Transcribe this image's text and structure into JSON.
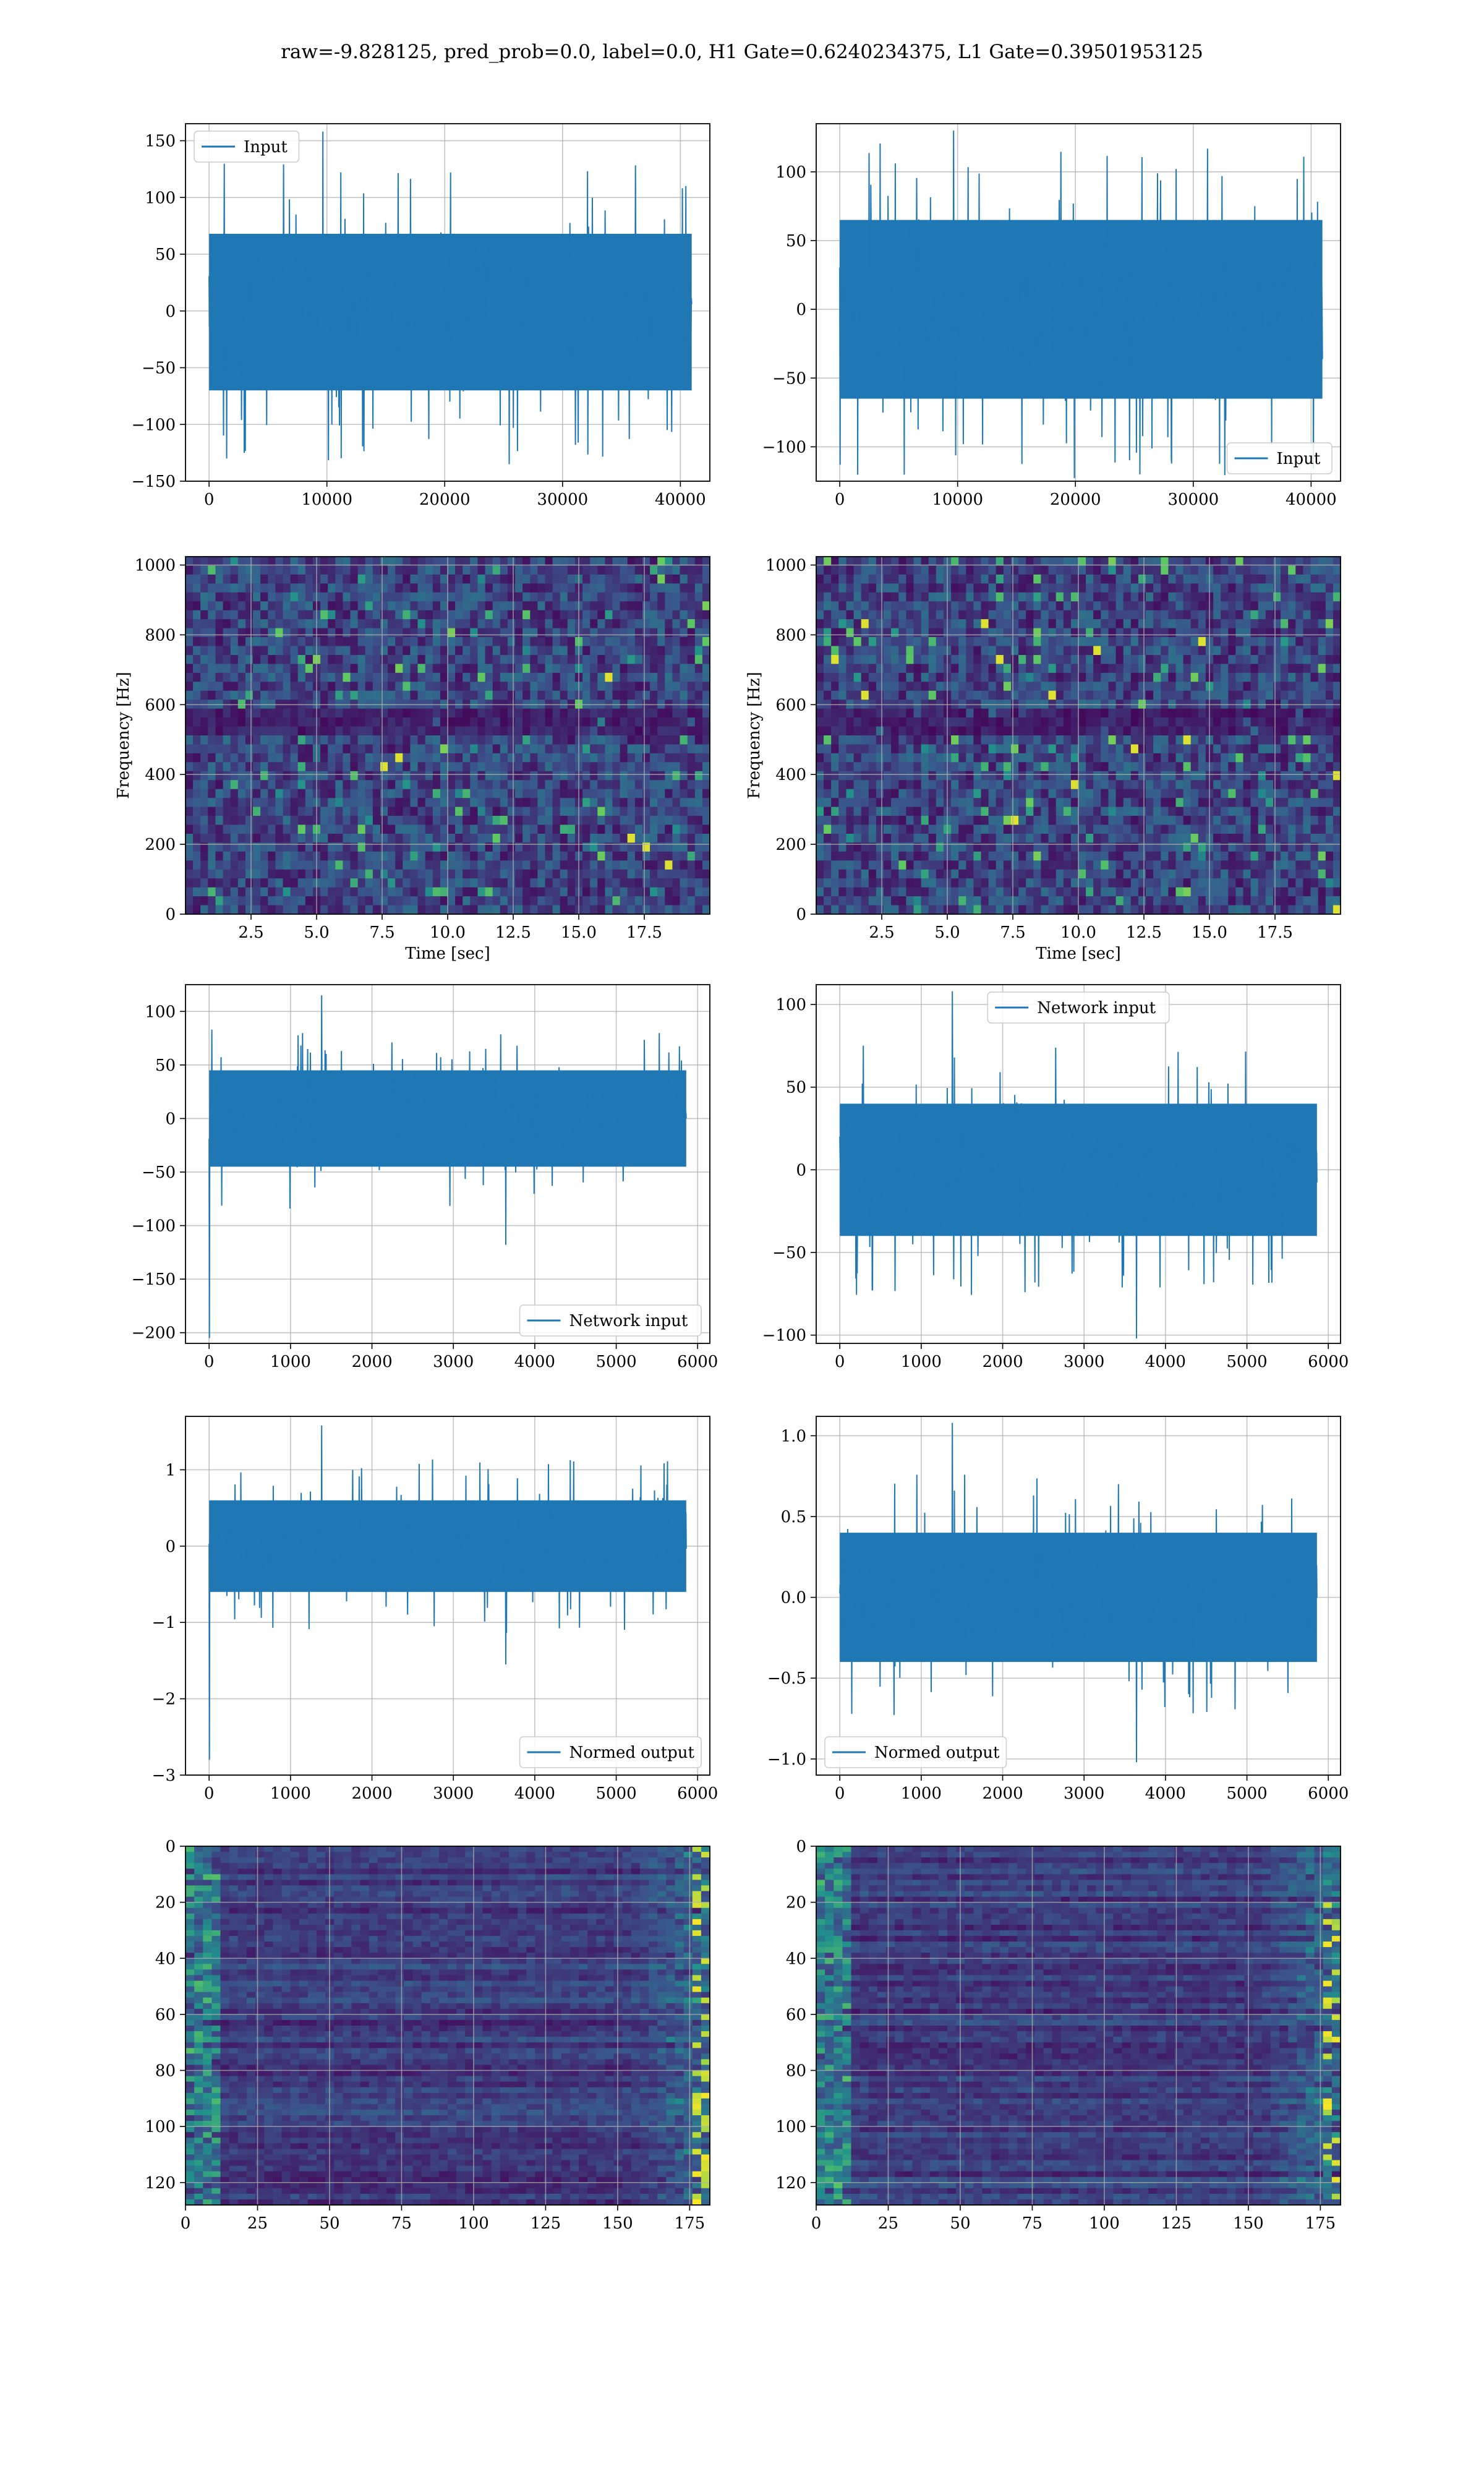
{
  "suptitle": "raw=-9.828125, pred_prob=0.0, label=0.0, H1 Gate=0.6240234375, L1 Gate=0.39501953125",
  "colors": {
    "line": "#1f77b4",
    "grid": "#b0b0b0",
    "axes": "#000000",
    "viridis_low": "#440154",
    "viridis_mid": "#21918c",
    "viridis_high": "#fde725"
  },
  "chart_data": [
    {
      "id": "input-h1",
      "type": "line",
      "legend": "Input",
      "legend_loc": "upper left",
      "xlim": [
        -2000,
        42500
      ],
      "ylim": [
        -150,
        165
      ],
      "xticks": [
        0,
        10000,
        20000,
        30000,
        40000
      ],
      "yticks": [
        -150,
        -100,
        -50,
        0,
        50,
        100,
        150
      ],
      "xlabel": "",
      "ylabel": "",
      "grid": true,
      "signal": {
        "x_range": [
          0,
          40960
        ],
        "band": [
          -70,
          68
        ],
        "peak_max": 158,
        "peak_min": -135
      }
    },
    {
      "id": "input-l1",
      "type": "line",
      "legend": "Input",
      "legend_loc": "lower right",
      "xlim": [
        -2000,
        42500
      ],
      "ylim": [
        -125,
        135
      ],
      "xticks": [
        0,
        10000,
        20000,
        30000,
        40000
      ],
      "yticks": [
        -100,
        -50,
        0,
        50,
        100
      ],
      "xlabel": "",
      "ylabel": "",
      "grid": true,
      "signal": {
        "x_range": [
          0,
          40960
        ],
        "band": [
          -65,
          65
        ],
        "peak_max": 130,
        "peak_min": -120
      }
    },
    {
      "id": "spectrogram-h1",
      "type": "heatmap",
      "colormap": "viridis",
      "xlim": [
        0,
        20
      ],
      "ylim": [
        0,
        1024
      ],
      "xticks": [
        2.5,
        5.0,
        7.5,
        10.0,
        12.5,
        15.0,
        17.5
      ],
      "xticklabels": [
        "2.5",
        "5.0",
        "7.5",
        "10.0",
        "12.5",
        "15.0",
        "17.5"
      ],
      "yticks": [
        0,
        200,
        400,
        600,
        800,
        1000
      ],
      "xlabel": "Time [sec]",
      "ylabel": "Frequency [Hz]",
      "grid": true
    },
    {
      "id": "spectrogram-l1",
      "type": "heatmap",
      "colormap": "viridis",
      "xlim": [
        0,
        20
      ],
      "ylim": [
        0,
        1024
      ],
      "xticks": [
        2.5,
        5.0,
        7.5,
        10.0,
        12.5,
        15.0,
        17.5
      ],
      "xticklabels": [
        "2.5",
        "5.0",
        "7.5",
        "10.0",
        "12.5",
        "15.0",
        "17.5"
      ],
      "yticks": [
        0,
        200,
        400,
        600,
        800,
        1000
      ],
      "xlabel": "Time [sec]",
      "ylabel": "Frequency [Hz]",
      "grid": true
    },
    {
      "id": "network-input-h1",
      "type": "line",
      "legend": "Network input",
      "legend_loc": "lower right",
      "xlim": [
        -290,
        6150
      ],
      "ylim": [
        -210,
        125
      ],
      "xticks": [
        0,
        1000,
        2000,
        3000,
        4000,
        5000,
        6000
      ],
      "yticks": [
        -200,
        -150,
        -100,
        -50,
        0,
        50,
        100
      ],
      "xlabel": "",
      "ylabel": "",
      "grid": true,
      "signal": {
        "x_range": [
          0,
          5860
        ],
        "band": [
          -45,
          45
        ],
        "peak_max": 115,
        "peak_min": -118,
        "spike_min": -205
      }
    },
    {
      "id": "network-input-l1",
      "type": "line",
      "legend": "Network input",
      "legend_loc": "upper center",
      "xlim": [
        -290,
        6150
      ],
      "ylim": [
        -105,
        112
      ],
      "xticks": [
        0,
        1000,
        2000,
        3000,
        4000,
        5000,
        6000
      ],
      "yticks": [
        -100,
        -50,
        0,
        50,
        100
      ],
      "xlabel": "",
      "ylabel": "",
      "grid": true,
      "signal": {
        "x_range": [
          0,
          5860
        ],
        "band": [
          -40,
          40
        ],
        "peak_max": 108,
        "peak_min": -102
      }
    },
    {
      "id": "normed-output-h1",
      "type": "line",
      "legend": "Normed output",
      "legend_loc": "lower right",
      "xlim": [
        -290,
        6150
      ],
      "ylim": [
        -3.0,
        1.7
      ],
      "xticks": [
        0,
        1000,
        2000,
        3000,
        4000,
        5000,
        6000
      ],
      "yticks": [
        -3,
        -2,
        -1,
        0,
        1
      ],
      "xlabel": "",
      "ylabel": "",
      "grid": true,
      "signal": {
        "x_range": [
          0,
          5860
        ],
        "band": [
          -0.6,
          0.6
        ],
        "peak_max": 1.58,
        "peak_min": -1.55,
        "spike_min": -2.8
      }
    },
    {
      "id": "normed-output-l1",
      "type": "line",
      "legend": "Normed output",
      "legend_loc": "lower left",
      "xlim": [
        -290,
        6150
      ],
      "ylim": [
        -1.1,
        1.12
      ],
      "xticks": [
        0,
        1000,
        2000,
        3000,
        4000,
        5000,
        6000
      ],
      "yticks": [
        -1.0,
        -0.5,
        0.0,
        0.5,
        1.0
      ],
      "yticklabels": [
        "−1.0",
        "−0.5",
        "0.0",
        "0.5",
        "1.0"
      ],
      "xlabel": "",
      "ylabel": "",
      "grid": true,
      "signal": {
        "x_range": [
          0,
          5860
        ],
        "band": [
          -0.4,
          0.4
        ],
        "peak_max": 1.08,
        "peak_min": -1.02
      }
    },
    {
      "id": "feature-map-h1",
      "type": "heatmap",
      "colormap": "viridis",
      "xlim": [
        0,
        182
      ],
      "ylim": [
        128,
        0
      ],
      "xticks": [
        0,
        25,
        50,
        75,
        100,
        125,
        150,
        175
      ],
      "yticks": [
        0,
        20,
        40,
        60,
        80,
        100,
        120
      ],
      "xlabel": "",
      "ylabel": "",
      "grid": true
    },
    {
      "id": "feature-map-l1",
      "type": "heatmap",
      "colormap": "viridis",
      "xlim": [
        0,
        182
      ],
      "ylim": [
        128,
        0
      ],
      "xticks": [
        0,
        25,
        50,
        75,
        100,
        125,
        150,
        175
      ],
      "yticks": [
        0,
        20,
        40,
        60,
        80,
        100,
        120
      ],
      "xlabel": "",
      "ylabel": "",
      "grid": true
    }
  ]
}
